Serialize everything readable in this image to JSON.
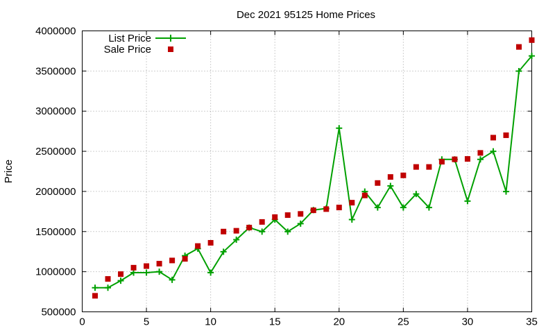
{
  "chart_data": {
    "type": "line",
    "title": "Dec 2021 95125 Home Prices",
    "xlabel": "",
    "ylabel": "Price",
    "xlim": [
      0,
      35
    ],
    "ylim": [
      500000,
      4000000
    ],
    "x_ticks": [
      "0",
      "5",
      "10",
      "15",
      "20",
      "25",
      "30",
      "35"
    ],
    "y_ticks": [
      "500000",
      "1000000",
      "1500000",
      "2000000",
      "2500000",
      "3000000",
      "3500000",
      "4000000"
    ],
    "grid": true,
    "legend_position": "top-left",
    "series": [
      {
        "name": "List Price",
        "style": "line+plus",
        "color": "#00a000",
        "x": [
          1,
          2,
          3,
          4,
          5,
          6,
          7,
          8,
          9,
          10,
          11,
          12,
          13,
          14,
          15,
          16,
          17,
          18,
          19,
          20,
          21,
          22,
          23,
          24,
          25,
          26,
          27,
          28,
          29,
          30,
          31,
          32,
          33,
          34,
          35
        ],
        "y": [
          800000,
          800000,
          888000,
          988000,
          988000,
          1000000,
          899000,
          1199000,
          1288000,
          988000,
          1249000,
          1399000,
          1549000,
          1499000,
          1649000,
          1499000,
          1599000,
          1768000,
          1788000,
          2788000,
          1649000,
          1998000,
          1799000,
          2068000,
          1799000,
          1968000,
          1799000,
          2399000,
          2399000,
          1880000,
          2399000,
          2499000,
          1998000,
          3499000,
          3688000
        ]
      },
      {
        "name": "Sale Price",
        "style": "square-markers",
        "color": "#c00000",
        "x": [
          1,
          2,
          3,
          4,
          5,
          6,
          7,
          8,
          9,
          10,
          11,
          12,
          13,
          14,
          15,
          16,
          17,
          18,
          19,
          20,
          21,
          22,
          23,
          24,
          25,
          26,
          27,
          28,
          29,
          30,
          31,
          32,
          33,
          34,
          35
        ],
        "y": [
          700000,
          910000,
          970000,
          1050000,
          1070000,
          1100000,
          1140000,
          1160000,
          1320000,
          1360000,
          1500000,
          1510000,
          1550000,
          1620000,
          1680000,
          1705000,
          1720000,
          1765000,
          1780000,
          1800000,
          1860000,
          1950000,
          2105000,
          2180000,
          2200000,
          2305000,
          2305000,
          2370000,
          2400000,
          2405000,
          2480000,
          2670000,
          2700000,
          3800000,
          3885000
        ]
      }
    ]
  }
}
